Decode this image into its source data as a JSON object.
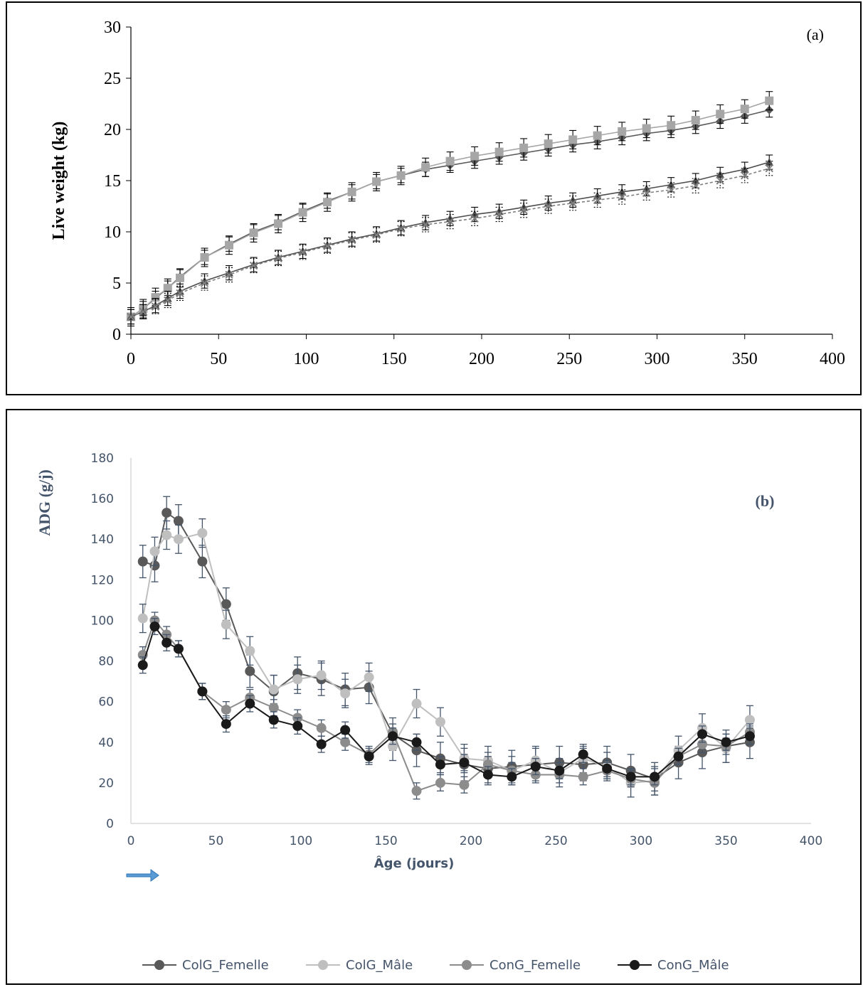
{
  "chart_data": [
    {
      "type": "line",
      "panel_label": "(a)",
      "title": "",
      "xlabel": "",
      "ylabel": "Live weight (kg)",
      "xlim": [
        0,
        400
      ],
      "ylim": [
        0,
        30
      ],
      "xticks": [
        0,
        50,
        100,
        150,
        200,
        250,
        300,
        350,
        400
      ],
      "yticks": [
        0,
        5,
        10,
        15,
        20,
        25,
        30
      ],
      "grid": false,
      "legend": "none",
      "x": [
        0,
        7,
        14,
        21,
        28,
        42,
        56,
        70,
        84,
        98,
        112,
        126,
        140,
        154,
        168,
        182,
        196,
        210,
        224,
        238,
        252,
        266,
        280,
        294,
        308,
        322,
        336,
        350,
        364
      ],
      "series": [
        {
          "marker": "diamond",
          "line": "solid",
          "color": "#595959",
          "error": 0.7,
          "values": [
            1.7,
            2.5,
            3.5,
            4.5,
            5.6,
            7.5,
            8.8,
            10.0,
            10.9,
            12.0,
            13.0,
            13.9,
            14.9,
            15.5,
            16.1,
            16.5,
            16.9,
            17.3,
            17.7,
            18.1,
            18.5,
            18.8,
            19.2,
            19.6,
            19.9,
            20.3,
            20.8,
            21.3,
            21.9
          ]
        },
        {
          "marker": "square",
          "line": "solid",
          "color": "#a6a6a6",
          "error": 0.9,
          "values": [
            1.7,
            2.5,
            3.6,
            4.5,
            5.5,
            7.5,
            8.7,
            9.9,
            10.8,
            11.9,
            12.9,
            13.9,
            14.9,
            15.5,
            16.3,
            16.9,
            17.4,
            17.8,
            18.2,
            18.6,
            19.0,
            19.4,
            19.8,
            20.1,
            20.4,
            20.9,
            21.5,
            22.0,
            22.8
          ]
        },
        {
          "marker": "triangle",
          "line": "solid",
          "color": "#4d4d4d",
          "error": 0.7,
          "values": [
            1.7,
            2.2,
            2.8,
            3.5,
            4.2,
            5.2,
            6.0,
            6.8,
            7.5,
            8.1,
            8.7,
            9.3,
            9.8,
            10.4,
            10.9,
            11.3,
            11.7,
            12.0,
            12.4,
            12.8,
            13.1,
            13.5,
            13.9,
            14.2,
            14.6,
            15.0,
            15.6,
            16.1,
            16.8
          ]
        },
        {
          "marker": "cross",
          "line": "dashed",
          "color": "#7f7f7f",
          "error": 0.7,
          "values": [
            1.7,
            2.2,
            2.7,
            3.3,
            4.0,
            5.0,
            5.8,
            6.7,
            7.4,
            8.0,
            8.6,
            9.2,
            9.7,
            10.3,
            10.7,
            11.0,
            11.3,
            11.7,
            12.1,
            12.5,
            12.8,
            13.1,
            13.4,
            13.8,
            14.1,
            14.5,
            15.0,
            15.5,
            16.2
          ]
        }
      ]
    },
    {
      "type": "line",
      "panel_label": "(b)",
      "title": "",
      "xlabel": "Âge (jours)",
      "ylabel": "ADG (g/j)",
      "xlim": [
        0,
        400
      ],
      "ylim": [
        0,
        180
      ],
      "xticks": [
        0,
        50,
        100,
        150,
        200,
        250,
        300,
        350,
        400
      ],
      "yticks": [
        0,
        20,
        40,
        60,
        80,
        100,
        120,
        140,
        160,
        180
      ],
      "grid": false,
      "legend": "bottom",
      "x": [
        7,
        14,
        21,
        28,
        42,
        56,
        70,
        84,
        98,
        112,
        126,
        140,
        154,
        168,
        182,
        196,
        210,
        224,
        238,
        252,
        266,
        280,
        294,
        308,
        322,
        336,
        350,
        364
      ],
      "series": [
        {
          "name": "ColG_Femelle",
          "color": "#595959",
          "error": 8,
          "values": [
            129,
            127,
            153,
            149,
            129,
            108,
            75,
            65,
            74,
            71,
            66,
            67,
            44,
            36,
            32,
            29,
            27,
            28,
            29,
            30,
            29,
            30,
            26,
            22,
            30,
            35,
            38,
            40
          ]
        },
        {
          "name": "ColG_Mâle",
          "color": "#bfbfbf",
          "error": 7,
          "values": [
            101,
            134,
            142,
            140,
            143,
            98,
            85,
            66,
            71,
            73,
            64,
            72,
            38,
            59,
            50,
            32,
            31,
            26,
            31,
            25,
            32,
            28,
            20,
            21,
            36,
            47,
            37,
            51
          ]
        },
        {
          "name": "ConG_Femelle",
          "color": "#8c8c8c",
          "error": 4,
          "values": [
            83,
            100,
            93,
            86,
            65,
            56,
            62,
            57,
            52,
            47,
            40,
            34,
            45,
            16,
            20,
            19,
            29,
            26,
            24,
            24,
            23,
            26,
            22,
            20,
            33,
            39,
            38,
            45
          ]
        },
        {
          "name": "ConG_Mâle",
          "color": "#1a1a1a",
          "error": 4,
          "values": [
            78,
            97,
            89,
            86,
            65,
            49,
            59,
            51,
            48,
            39,
            46,
            33,
            43,
            40,
            29,
            30,
            24,
            23,
            28,
            26,
            34,
            27,
            23,
            23,
            33,
            44,
            40,
            43
          ]
        }
      ]
    }
  ]
}
